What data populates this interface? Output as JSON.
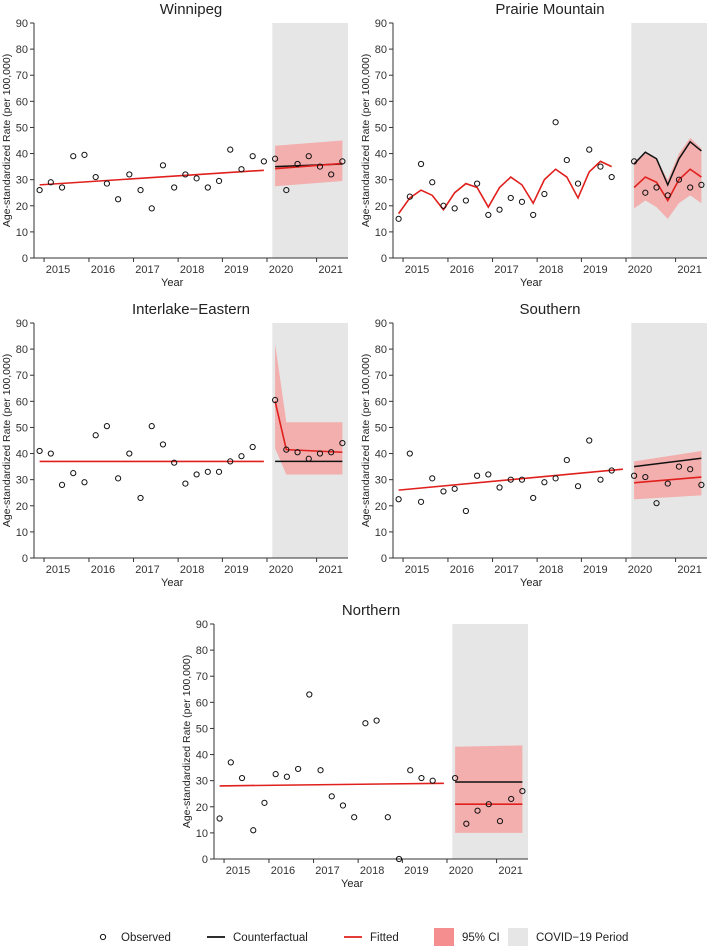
{
  "chart_data": [
    {
      "type": "line",
      "title": "Winnipeg",
      "xlabel": "Year",
      "ylabel": "Age-standardized Rate (per 100,000)",
      "ylim": [
        0,
        90
      ],
      "yticks": [
        0,
        10,
        20,
        30,
        40,
        50,
        60,
        70,
        80,
        90
      ],
      "xticks": [
        "2015",
        "2016",
        "2017",
        "2018",
        "2019",
        "2020",
        "2021"
      ],
      "covid_start": 21.2,
      "observed": [
        [
          0,
          26
        ],
        [
          1,
          29
        ],
        [
          2,
          27
        ],
        [
          3,
          39
        ],
        [
          4,
          39.5
        ],
        [
          5,
          31
        ],
        [
          6,
          28.5
        ],
        [
          7,
          22.5
        ],
        [
          8,
          32
        ],
        [
          9,
          26
        ],
        [
          10,
          19
        ],
        [
          11,
          35.5
        ],
        [
          12,
          27
        ],
        [
          13,
          32
        ],
        [
          14,
          30.5
        ],
        [
          15,
          27
        ],
        [
          16,
          29.5
        ],
        [
          17,
          41.5
        ],
        [
          18,
          34
        ],
        [
          19,
          39
        ],
        [
          20,
          37
        ],
        [
          21,
          38
        ],
        [
          22,
          26
        ],
        [
          23,
          36
        ],
        [
          24,
          39
        ],
        [
          25,
          35
        ],
        [
          26,
          32
        ],
        [
          27,
          37
        ]
      ],
      "fitted": [
        [
          0,
          28
        ],
        [
          20,
          33.6
        ],
        [
          21,
          34.2
        ],
        [
          27,
          36.2
        ]
      ],
      "counterfactual": [
        [
          21,
          35
        ],
        [
          27,
          36
        ]
      ],
      "ci": [
        [
          21,
          27.5,
          43
        ],
        [
          27,
          29.5,
          45
        ]
      ]
    },
    {
      "type": "line",
      "title": "Prairie Mountain",
      "xlabel": "Year",
      "ylabel": "Age-standardized Rate (per 100,000)",
      "ylim": [
        0,
        90
      ],
      "yticks": [
        0,
        10,
        20,
        30,
        40,
        50,
        60,
        70,
        80,
        90
      ],
      "xticks": [
        "2015",
        "2016",
        "2017",
        "2018",
        "2019",
        "2020",
        "2021"
      ],
      "covid_start": 21.2,
      "observed": [
        [
          0,
          15
        ],
        [
          1,
          23.5
        ],
        [
          2,
          36
        ],
        [
          3,
          29
        ],
        [
          4,
          20
        ],
        [
          5,
          19
        ],
        [
          6,
          22
        ],
        [
          7,
          28.5
        ],
        [
          8,
          16.5
        ],
        [
          9,
          18.5
        ],
        [
          10,
          23
        ],
        [
          11,
          21.5
        ],
        [
          12,
          16.5
        ],
        [
          13,
          24.5
        ],
        [
          14,
          52
        ],
        [
          15,
          37.5
        ],
        [
          16,
          28.5
        ],
        [
          17,
          41.5
        ],
        [
          18,
          35
        ],
        [
          19,
          31
        ],
        [
          21,
          37
        ],
        [
          22,
          25
        ],
        [
          23,
          27
        ],
        [
          24,
          24
        ],
        [
          25,
          30
        ],
        [
          26,
          27
        ],
        [
          27,
          28
        ]
      ],
      "fitted": [
        [
          0,
          17
        ],
        [
          1,
          23
        ],
        [
          2,
          26
        ],
        [
          3,
          24
        ],
        [
          4,
          18.5
        ],
        [
          5,
          25
        ],
        [
          6,
          28.5
        ],
        [
          7,
          27
        ],
        [
          8,
          19.5
        ],
        [
          9,
          27
        ],
        [
          10,
          31
        ],
        [
          11,
          28
        ],
        [
          12,
          21
        ],
        [
          13,
          30
        ],
        [
          14,
          34
        ],
        [
          15,
          31
        ],
        [
          16,
          23
        ],
        [
          17,
          33
        ],
        [
          18,
          37
        ],
        [
          19,
          35
        ],
        [
          21,
          27
        ],
        [
          22,
          31
        ],
        [
          23,
          29
        ],
        [
          24,
          22
        ],
        [
          25,
          30
        ],
        [
          26,
          34
        ],
        [
          27,
          31
        ]
      ],
      "counterfactual": [
        [
          21,
          36
        ],
        [
          22,
          40.5
        ],
        [
          23,
          38
        ],
        [
          24,
          28
        ],
        [
          25,
          38
        ],
        [
          26,
          44.5
        ],
        [
          27,
          41
        ]
      ],
      "ci": [
        [
          21,
          19,
          37
        ],
        [
          22,
          22,
          40
        ],
        [
          23,
          19.5,
          38
        ],
        [
          24,
          15,
          30
        ],
        [
          25,
          21,
          40
        ],
        [
          26,
          24,
          46
        ],
        [
          27,
          21,
          42
        ]
      ]
    },
    {
      "type": "line",
      "title": "Interlake−Eastern",
      "xlabel": "Year",
      "ylabel": "Age-standardized Rate (per 100,000)",
      "ylim": [
        0,
        90
      ],
      "yticks": [
        0,
        10,
        20,
        30,
        40,
        50,
        60,
        70,
        80,
        90
      ],
      "xticks": [
        "2015",
        "2016",
        "2017",
        "2018",
        "2019",
        "2020",
        "2021"
      ],
      "covid_start": 21.2,
      "observed": [
        [
          0,
          41
        ],
        [
          1,
          40
        ],
        [
          2,
          28
        ],
        [
          3,
          32.5
        ],
        [
          4,
          29
        ],
        [
          5,
          47
        ],
        [
          6,
          50.5
        ],
        [
          7,
          30.5
        ],
        [
          8,
          40
        ],
        [
          9,
          23
        ],
        [
          10,
          50.5
        ],
        [
          11,
          43.5
        ],
        [
          12,
          36.5
        ],
        [
          13,
          28.5
        ],
        [
          14,
          32
        ],
        [
          15,
          33
        ],
        [
          16,
          33
        ],
        [
          17,
          37
        ],
        [
          18,
          39
        ],
        [
          19,
          42.5
        ],
        [
          21,
          60.5
        ],
        [
          22,
          41.5
        ],
        [
          23,
          40.5
        ],
        [
          24,
          38
        ],
        [
          25,
          40
        ],
        [
          26,
          40.5
        ],
        [
          27,
          44
        ]
      ],
      "fitted": [
        [
          0,
          37
        ],
        [
          20,
          37
        ],
        [
          21,
          60
        ],
        [
          22,
          41.5
        ],
        [
          27,
          40.5
        ]
      ],
      "counterfactual": [
        [
          21,
          37
        ],
        [
          27,
          37
        ]
      ],
      "ci": [
        [
          21,
          42,
          82
        ],
        [
          22,
          32,
          52
        ],
        [
          27,
          32,
          52
        ]
      ]
    },
    {
      "type": "line",
      "title": "Southern",
      "xlabel": "Year",
      "ylabel": "Age-standardized Rate (per 100,000)",
      "ylim": [
        0,
        90
      ],
      "yticks": [
        0,
        10,
        20,
        30,
        40,
        50,
        60,
        70,
        80,
        90
      ],
      "xticks": [
        "2015",
        "2016",
        "2017",
        "2018",
        "2019",
        "2020",
        "2021"
      ],
      "covid_start": 21.2,
      "observed": [
        [
          0,
          22.5
        ],
        [
          1,
          40
        ],
        [
          2,
          21.5
        ],
        [
          3,
          30.5
        ],
        [
          4,
          25.5
        ],
        [
          5,
          26.5
        ],
        [
          6,
          18
        ],
        [
          7,
          31.5
        ],
        [
          8,
          32
        ],
        [
          9,
          27
        ],
        [
          10,
          30
        ],
        [
          11,
          30
        ],
        [
          12,
          23
        ],
        [
          13,
          29
        ],
        [
          14,
          30.5
        ],
        [
          15,
          37.5
        ],
        [
          16,
          27.5
        ],
        [
          17,
          45
        ],
        [
          18,
          30
        ],
        [
          19,
          33.5
        ],
        [
          21,
          31.5
        ],
        [
          22,
          31
        ],
        [
          23,
          21
        ],
        [
          24,
          28.5
        ],
        [
          25,
          35
        ],
        [
          26,
          34
        ],
        [
          27,
          28
        ]
      ],
      "fitted": [
        [
          0,
          26
        ],
        [
          20,
          34
        ],
        [
          21,
          28.8
        ],
        [
          27,
          31
        ]
      ],
      "counterfactual": [
        [
          21,
          35
        ],
        [
          27,
          38.2
        ]
      ],
      "ci": [
        [
          21,
          22.5,
          37
        ],
        [
          27,
          24,
          41
        ]
      ]
    },
    {
      "type": "line",
      "title": "Northern",
      "xlabel": "Year",
      "ylabel": "Age-standardized Rate (per 100,000)",
      "ylim": [
        0,
        90
      ],
      "yticks": [
        0,
        10,
        20,
        30,
        40,
        50,
        60,
        70,
        80,
        90
      ],
      "xticks": [
        "2015",
        "2016",
        "2017",
        "2018",
        "2019",
        "2020",
        "2021"
      ],
      "covid_start": 21.2,
      "observed": [
        [
          0,
          15.5
        ],
        [
          1,
          37
        ],
        [
          2,
          31
        ],
        [
          3,
          11
        ],
        [
          4,
          21.5
        ],
        [
          5,
          32.5
        ],
        [
          6,
          31.5
        ],
        [
          7,
          34.5
        ],
        [
          8,
          63
        ],
        [
          9,
          34
        ],
        [
          10,
          24
        ],
        [
          11,
          20.5
        ],
        [
          12,
          16
        ],
        [
          13,
          52
        ],
        [
          14,
          53
        ],
        [
          15,
          16
        ],
        [
          16,
          0
        ],
        [
          17,
          34
        ],
        [
          18,
          31
        ],
        [
          19,
          30
        ],
        [
          21,
          31
        ],
        [
          22,
          13.5
        ],
        [
          23,
          18.5
        ],
        [
          24,
          21
        ],
        [
          25,
          14.5
        ],
        [
          26,
          23
        ],
        [
          27,
          26
        ]
      ],
      "fitted": [
        [
          0,
          28
        ],
        [
          20,
          29
        ],
        [
          21,
          21
        ],
        [
          27,
          21
        ]
      ],
      "counterfactual": [
        [
          21,
          29.5
        ],
        [
          27,
          29.5
        ]
      ],
      "ci": [
        [
          21,
          10,
          43
        ],
        [
          27,
          10,
          43.5
        ]
      ]
    }
  ],
  "legend": [
    {
      "key": "observed",
      "label": "Observed"
    },
    {
      "key": "counterfactual",
      "label": "Counterfactual"
    },
    {
      "key": "fitted",
      "label": "Fitted"
    },
    {
      "key": "ci",
      "label": "95% CI"
    },
    {
      "key": "covid",
      "label": "COVID−19 Period"
    }
  ],
  "colors": {
    "fitted": "#e0201c",
    "counterfactual": "#111111",
    "ci": "#f4a3a3",
    "covid": "#e6e6e6",
    "observed": "#111111",
    "axis": "#333333"
  }
}
